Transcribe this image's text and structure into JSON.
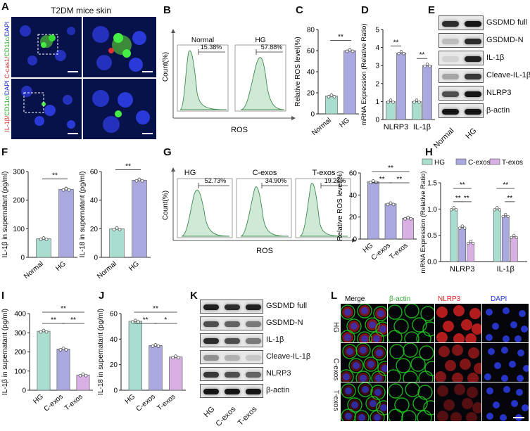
{
  "panels": {
    "A": "A",
    "B": "B",
    "C": "C",
    "D": "D",
    "E": "E",
    "F": "F",
    "G": "G",
    "H": "H",
    "I": "I",
    "J": "J",
    "K": "K",
    "L": "L"
  },
  "panelA": {
    "title": "T2DM mice skin",
    "label_top": [
      "C-cas1/",
      "CD11c/",
      "DAPI"
    ],
    "label_bottom": [
      "IL-1β/",
      "CD11c/",
      "DAPI"
    ]
  },
  "panelB": {
    "ylabel": "Count(%)",
    "xlabel": "ROS",
    "plots": [
      {
        "name": "Normal",
        "gate": "15.38%"
      },
      {
        "name": "HG",
        "gate": "57.88%"
      }
    ]
  },
  "panelG": {
    "ylabel": "Count(%)",
    "xlabel": "ROS",
    "plots": [
      {
        "name": "HG",
        "gate": "52.73%"
      },
      {
        "name": "C-exos",
        "gate": "34.90%"
      },
      {
        "name": "T-exos",
        "gate": "19.24%"
      }
    ]
  },
  "westernE": {
    "labels": [
      "GSDMD full",
      "GSDMD-N",
      "IL-1β",
      "Cleave-IL-1β",
      "NLRP3",
      "β-actin"
    ],
    "lanes": [
      "Normal",
      "HG"
    ]
  },
  "westernK": {
    "labels": [
      "GSDMD full",
      "GSDMD-N",
      "IL-1β",
      "Cleave-IL-1β",
      "NLRP3",
      "β-actin"
    ],
    "lanes": [
      "HG",
      "C-exos",
      "T-exos"
    ]
  },
  "panelL": {
    "columns": [
      "Merge",
      "β-actin",
      "NLRP3",
      "DAPI"
    ],
    "rows": [
      "HG",
      "C-exos",
      "T-exos"
    ],
    "colors": {
      "Merge": "#000000",
      "β-actin": "#33cc33",
      "NLRP3": "#e02020",
      "DAPI": "#2233dd"
    }
  },
  "chart_data": [
    {
      "id": "C",
      "type": "bar",
      "categories": [
        "Normal",
        "HG"
      ],
      "values": [
        17,
        60
      ],
      "ylabel": "Relative ROS level(%)",
      "ylim": [
        0,
        80
      ],
      "yticks": [
        0,
        20,
        40,
        60,
        80
      ],
      "significance": [
        {
          "pair": [
            "Normal",
            "HG"
          ],
          "label": "**"
        }
      ]
    },
    {
      "id": "D",
      "type": "bar",
      "groups": [
        "NLRP3",
        "IL-1β"
      ],
      "series": [
        {
          "values": [
            1,
            1
          ]
        },
        {
          "values": [
            3.7,
            3.0
          ]
        }
      ],
      "ylabel": "mRNA Expression (Relative Ratio)",
      "ylim": [
        0,
        5
      ],
      "yticks": [
        0,
        1,
        2,
        3,
        4,
        5
      ],
      "significance": [
        {
          "group": "NLRP3",
          "label": "**"
        },
        {
          "group": "IL-1β",
          "label": "**"
        }
      ]
    },
    {
      "id": "F1",
      "type": "bar",
      "categories": [
        "Normal",
        "HG"
      ],
      "values": [
        65,
        238
      ],
      "ylabel": "IL-1β in supernatant (pg/ml)",
      "ylim": [
        0,
        300
      ],
      "yticks": [
        0,
        100,
        200,
        300
      ],
      "significance": [
        {
          "pair": [
            "Normal",
            "HG"
          ],
          "label": "**"
        }
      ]
    },
    {
      "id": "F2",
      "type": "bar",
      "categories": [
        "Normal",
        "HG"
      ],
      "values": [
        20,
        54
      ],
      "ylabel": "IL-18 in supernatant (pg/ml)",
      "ylim": [
        0,
        60
      ],
      "yticks": [
        0,
        20,
        40,
        60
      ],
      "significance": [
        {
          "pair": [
            "Normal",
            "HG"
          ],
          "label": "**"
        }
      ]
    },
    {
      "id": "Gbar",
      "type": "bar",
      "categories": [
        "HG",
        "C-exos",
        "T-exos"
      ],
      "values": [
        52,
        32,
        19
      ],
      "ylabel": "Relative ROS level(%)",
      "ylim": [
        0,
        60
      ],
      "yticks": [
        0,
        20,
        40,
        60
      ],
      "significance": [
        {
          "pair": [
            "HG",
            "C-exos"
          ],
          "label": "**"
        },
        {
          "pair": [
            "C-exos",
            "T-exos"
          ],
          "label": "**"
        },
        {
          "pair": [
            "HG",
            "T-exos"
          ],
          "label": "**"
        }
      ]
    },
    {
      "id": "H",
      "type": "bar",
      "groups": [
        "NLRP3",
        "IL-1β"
      ],
      "series": [
        {
          "name": "HG",
          "values": [
            1.0,
            1.0
          ]
        },
        {
          "name": "C-exos",
          "values": [
            0.65,
            0.87
          ]
        },
        {
          "name": "T-exos",
          "values": [
            0.36,
            0.47
          ]
        }
      ],
      "ylabel": "mRNA Expression (Relative Ratio)",
      "ylim": [
        0,
        1.5
      ],
      "yticks": [
        0.0,
        0.5,
        1.0,
        1.5
      ],
      "significance": [
        {
          "group": "NLRP3",
          "labels": [
            "**",
            "**",
            "**"
          ]
        },
        {
          "group": "IL-1β",
          "labels": [
            "**",
            "**"
          ]
        }
      ]
    },
    {
      "id": "I",
      "type": "bar",
      "categories": [
        "HG",
        "C-exos",
        "T-exos"
      ],
      "values": [
        308,
        215,
        80
      ],
      "ylabel": "IL-1β in supernatant (pg/ml)",
      "ylim": [
        0,
        400
      ],
      "yticks": [
        0,
        100,
        200,
        300,
        400
      ],
      "significance": [
        {
          "pair": [
            "HG",
            "C-exos"
          ],
          "label": "**"
        },
        {
          "pair": [
            "C-exos",
            "T-exos"
          ],
          "label": "**"
        },
        {
          "pair": [
            "HG",
            "T-exos"
          ],
          "label": "**"
        }
      ]
    },
    {
      "id": "J",
      "type": "bar",
      "categories": [
        "HG",
        "C-exos",
        "T-exos"
      ],
      "values": [
        54,
        35,
        26
      ],
      "ylabel": "IL-18 in supernatant (pg/ml)",
      "ylim": [
        0,
        60
      ],
      "yticks": [
        0,
        20,
        40,
        60
      ],
      "significance": [
        {
          "pair": [
            "HG",
            "C-exos"
          ],
          "label": "**"
        },
        {
          "pair": [
            "C-exos",
            "T-exos"
          ],
          "label": "*"
        },
        {
          "pair": [
            "HG",
            "T-exos"
          ],
          "label": "**"
        }
      ]
    }
  ],
  "colors": {
    "normal": "#a8ddd0",
    "hg": "#a9a9e0",
    "cexos": "#a9a9e0",
    "texos": "#d8b0e4",
    "hg_teal": "#a8ddd0"
  }
}
